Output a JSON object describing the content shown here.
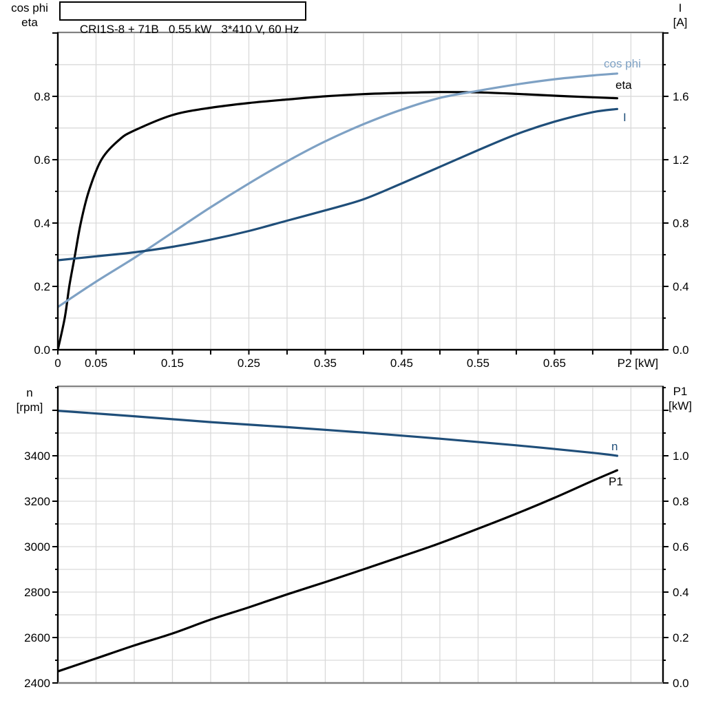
{
  "title": "CRI1S-8 + 71B   0.55 kW   3*410 V, 60 Hz",
  "colors": {
    "black_curve": "#000000",
    "dark_blue_curve": "#1F4E79",
    "light_blue_curve": "#7EA1C4",
    "grid": "#D9D9D9",
    "frame_gray": "#808080",
    "axis_black": "#000000"
  },
  "labels": {
    "top_left": {
      "line1": "cos phi",
      "line2": "eta"
    },
    "top_right": {
      "line1": "I",
      "line2": "[A]"
    },
    "bottom_left": {
      "line1": "n",
      "line2": "[rpm]"
    },
    "bottom_right": {
      "line1": "P1",
      "line2": "[kW]"
    },
    "curve_cos_phi": "cos phi",
    "curve_eta": "eta",
    "curve_current": "I",
    "curve_speed": "n",
    "curve_power": "P1"
  },
  "chart_data": [
    {
      "type": "line",
      "title": "CRI1S-8 + 71B   0.55 kW   3*410 V, 60 Hz",
      "xlabel": "P2 [kW]",
      "x_axis": {
        "min": 0,
        "max": 0.792,
        "minor_step": 0.05,
        "unit_label": "P2 [kW]",
        "tick_labels": [
          {
            "v": 0,
            "t": "0"
          },
          {
            "v": 0.05,
            "t": "0.05"
          },
          {
            "v": 0.15,
            "t": "0.15"
          },
          {
            "v": 0.25,
            "t": "0.25"
          },
          {
            "v": 0.35,
            "t": "0.35"
          },
          {
            "v": 0.45,
            "t": "0.45"
          },
          {
            "v": 0.55,
            "t": "0.55"
          },
          {
            "v": 0.65,
            "t": "0.65"
          }
        ]
      },
      "left_axis": {
        "label": "cos phi / eta",
        "min": 0,
        "max": 1.002,
        "minor_step": 0.1,
        "major_step": 0.2,
        "tick_labels": [
          {
            "v": 0,
            "t": "0.0"
          },
          {
            "v": 0.2,
            "t": "0.2"
          },
          {
            "v": 0.4,
            "t": "0.4"
          },
          {
            "v": 0.6,
            "t": "0.6"
          },
          {
            "v": 0.8,
            "t": "0.8"
          }
        ]
      },
      "right_axis": {
        "label": "I [A]",
        "min": 0,
        "max": 2.004,
        "minor_step": 0.2,
        "major_step": 0.4,
        "tick_labels": [
          {
            "v": 0,
            "t": "0.0"
          },
          {
            "v": 0.4,
            "t": "0.4"
          },
          {
            "v": 0.8,
            "t": "0.8"
          },
          {
            "v": 1.2,
            "t": "1.2"
          },
          {
            "v": 1.6,
            "t": "1.6"
          }
        ]
      },
      "series": [
        {
          "name": "eta",
          "axis": "left",
          "color_key": "black_curve",
          "x": [
            0,
            0.009,
            0.015,
            0.0225,
            0.03,
            0.0405,
            0.057,
            0.08,
            0.1,
            0.15,
            0.2,
            0.25,
            0.3,
            0.35,
            0.4,
            0.45,
            0.5,
            0.55,
            0.6,
            0.65,
            0.7,
            0.732
          ],
          "y": [
            0,
            0.1,
            0.2,
            0.3,
            0.4,
            0.5,
            0.6,
            0.662,
            0.692,
            0.741,
            0.764,
            0.779,
            0.79,
            0.8,
            0.807,
            0.811,
            0.8135,
            0.8125,
            0.808,
            0.802,
            0.797,
            0.794
          ]
        },
        {
          "name": "cos phi",
          "axis": "left",
          "color_key": "light_blue_curve",
          "x": [
            0,
            0.05,
            0.1,
            0.15,
            0.2,
            0.25,
            0.3,
            0.35,
            0.4,
            0.45,
            0.5,
            0.55,
            0.6,
            0.65,
            0.7,
            0.732
          ],
          "y": [
            0.135,
            0.215,
            0.29,
            0.37,
            0.45,
            0.525,
            0.595,
            0.658,
            0.712,
            0.758,
            0.795,
            0.8175,
            0.8375,
            0.854,
            0.866,
            0.872
          ]
        },
        {
          "name": "I",
          "axis": "right",
          "color_key": "dark_blue_curve",
          "x": [
            0,
            0.05,
            0.1,
            0.15,
            0.2,
            0.25,
            0.3,
            0.35,
            0.4,
            0.45,
            0.5,
            0.55,
            0.6,
            0.65,
            0.7,
            0.732
          ],
          "y": [
            0.565,
            0.59,
            0.615,
            0.65,
            0.695,
            0.75,
            0.815,
            0.88,
            0.95,
            1.05,
            1.155,
            1.26,
            1.36,
            1.44,
            1.5,
            1.52
          ]
        }
      ]
    },
    {
      "type": "line",
      "xlabel": "",
      "x_axis": {
        "min": 0,
        "max": 0.792,
        "minor_step": 0.05,
        "unit_label": "",
        "tick_labels": []
      },
      "left_axis": {
        "label": "n [rpm]",
        "min": 2400,
        "max": 3706,
        "minor_step": 100,
        "major_step": 200,
        "tick_labels": [
          {
            "v": 2400,
            "t": "2400"
          },
          {
            "v": 2600,
            "t": "2600"
          },
          {
            "v": 2800,
            "t": "2800"
          },
          {
            "v": 3000,
            "t": "3000"
          },
          {
            "v": 3200,
            "t": "3200"
          },
          {
            "v": 3400,
            "t": "3400"
          }
        ]
      },
      "right_axis": {
        "label": "P1 [kW]",
        "min": 0,
        "max": 1.306,
        "minor_step": 0.1,
        "major_step": 0.2,
        "tick_labels": [
          {
            "v": 0,
            "t": "0.0"
          },
          {
            "v": 0.2,
            "t": "0.2"
          },
          {
            "v": 0.4,
            "t": "0.4"
          },
          {
            "v": 0.6,
            "t": "0.6"
          },
          {
            "v": 0.8,
            "t": "0.8"
          },
          {
            "v": 1.0,
            "t": "1.0"
          }
        ]
      },
      "series": [
        {
          "name": "n",
          "axis": "left",
          "color_key": "dark_blue_curve",
          "x": [
            0,
            0.1,
            0.2,
            0.3,
            0.4,
            0.5,
            0.6,
            0.7,
            0.732
          ],
          "y": [
            3598,
            3574,
            3548,
            3526,
            3502,
            3475,
            3446,
            3413,
            3400
          ]
        },
        {
          "name": "P1",
          "axis": "right",
          "color_key": "black_curve",
          "x": [
            0,
            0.05,
            0.1,
            0.15,
            0.2,
            0.25,
            0.3,
            0.35,
            0.4,
            0.45,
            0.5,
            0.55,
            0.6,
            0.65,
            0.7,
            0.732
          ],
          "y": [
            0.051,
            0.108,
            0.165,
            0.218,
            0.279,
            0.333,
            0.39,
            0.444,
            0.5,
            0.557,
            0.615,
            0.679,
            0.745,
            0.815,
            0.89,
            0.936
          ]
        }
      ]
    }
  ]
}
